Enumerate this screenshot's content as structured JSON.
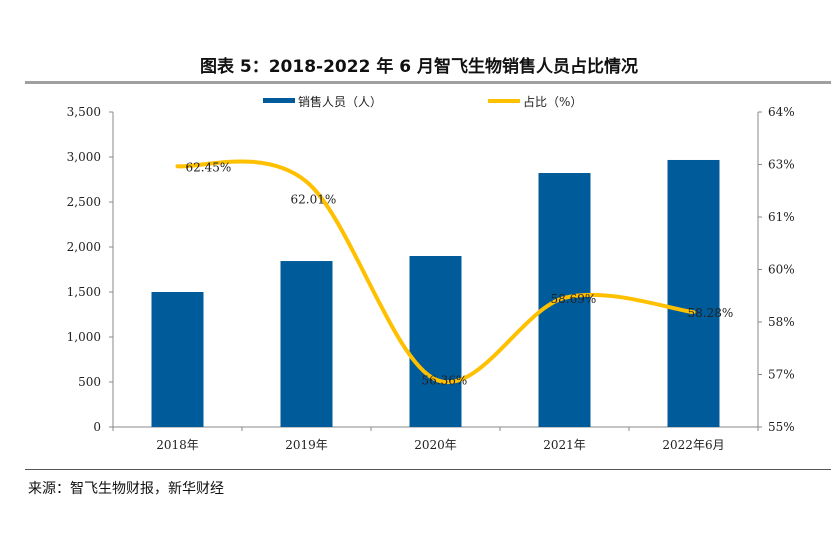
{
  "title": "图表 5：2018-2022 年 6 月智飞生物销售人员占比情况",
  "source": "来源：智飞生物财报，新华财经",
  "chart_data": {
    "type": "bar+line",
    "title": "图表 5：2018-2022 年 6 月智飞生物销售人员占比情况",
    "categories": [
      "2018年",
      "2019年",
      "2020年",
      "2021年",
      "2022年6月"
    ],
    "series": [
      {
        "name": "销售人员（人）",
        "type": "bar",
        "axis": "left",
        "color": "#005B9A",
        "values": [
          1500,
          1844,
          1900,
          2822,
          2967
        ]
      },
      {
        "name": "占比（%）",
        "type": "line",
        "axis": "right",
        "color": "#FFC000",
        "smooth": true,
        "values": [
          62.45,
          62.01,
          56.36,
          58.69,
          58.28
        ],
        "labels": [
          "62.45%",
          "62.01%",
          "56.36%",
          "58.69%",
          "58.28%"
        ]
      }
    ],
    "left_axis": {
      "range": [
        0,
        3500
      ],
      "ticks": [
        0,
        500,
        1000,
        1500,
        2000,
        2500,
        3000,
        3500
      ],
      "tick_labels": [
        "0",
        "500",
        "1,000",
        "1,500",
        "2,000",
        "2,500",
        "3,000",
        "3,500"
      ]
    },
    "right_axis": {
      "range": [
        55,
        64
      ],
      "ticks": [
        55,
        56.5,
        58,
        59.5,
        61,
        62.5,
        64
      ],
      "tick_labels": [
        "55%",
        "57%",
        "58%",
        "60%",
        "61%",
        "63%",
        "64%"
      ]
    },
    "legend": "top",
    "grid": false
  }
}
